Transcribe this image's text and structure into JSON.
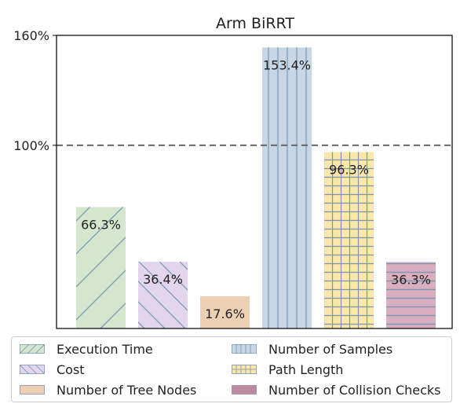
{
  "chart_data": {
    "type": "bar",
    "title": "Arm BiRRT",
    "categories": [
      "Execution Time",
      "Cost",
      "Number of Tree Nodes",
      "Number of Samples",
      "Path Length",
      "Number of Collision Checks"
    ],
    "values": [
      66.3,
      36.4,
      17.6,
      153.4,
      96.3,
      36.3
    ],
    "value_labels": [
      "66.3%",
      "36.4%",
      "17.6%",
      "153.4%",
      "96.3%",
      "36.3%"
    ],
    "ylim": [
      0,
      160
    ],
    "y_ticks": [
      100,
      160
    ],
    "y_tick_labels": [
      "100%",
      "160%"
    ],
    "reference_line": 100,
    "grid": false,
    "legend_position": "bottom",
    "colors": [
      "#d5e6cf",
      "#e4d5ee",
      "#edcfb4",
      "#c8d7e6",
      "#fbe7aa",
      "#d9aebf"
    ],
    "hatch_colors": [
      "#7a96b0",
      "#7a96b0",
      "#7a96b0",
      "#7a96b0",
      "#7a96b0",
      "#7a96b0"
    ],
    "hatches": [
      "diagonal-up",
      "diagonal-down",
      "none",
      "vertical",
      "grid",
      "horizontal"
    ],
    "legend_colors": [
      "#d5e6cf",
      "#e4d5ee",
      "#edcfb4",
      "#c8d7e6",
      "#fbe7aa",
      "#c9879e"
    ]
  }
}
